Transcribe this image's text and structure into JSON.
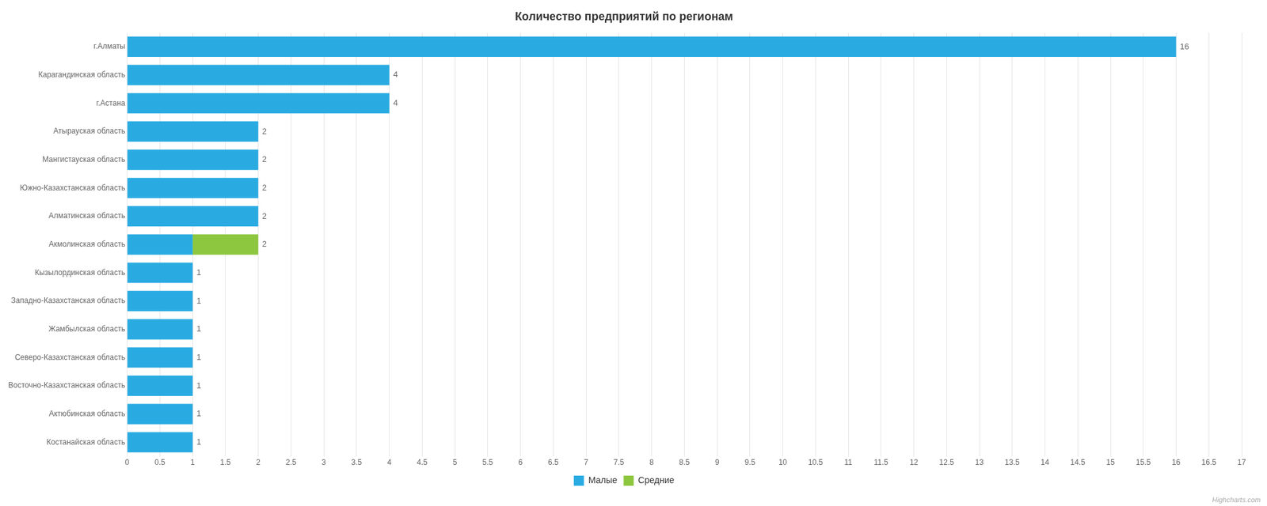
{
  "chart_data": {
    "type": "bar",
    "orientation": "horizontal",
    "stacked": true,
    "title": "Количество предприятий по регионам",
    "categories": [
      "г.Алматы",
      "Карагандинская область",
      "г.Астана",
      "Атырауская область",
      "Мангистауская область",
      "Южно-Казахстанская область",
      "Алматинская область",
      "Акмолинская область",
      "Кызылординская область",
      "Западно-Казахстанская область",
      "Жамбылская область",
      "Северо-Казахстанская область",
      "Восточно-Казахстанская область",
      "Актюбинская область",
      "Костанайская область"
    ],
    "series": [
      {
        "name": "Малые",
        "color": "#29ABE2",
        "values": [
          16,
          4,
          4,
          2,
          2,
          2,
          2,
          1,
          1,
          1,
          1,
          1,
          1,
          1,
          1
        ]
      },
      {
        "name": "Средние",
        "color": "#8DC63F",
        "values": [
          0,
          0,
          0,
          0,
          0,
          0,
          0,
          1,
          0,
          0,
          0,
          0,
          0,
          0,
          0
        ]
      }
    ],
    "value_labels": [
      16,
      4,
      4,
      2,
      2,
      2,
      2,
      2,
      1,
      1,
      1,
      1,
      1,
      1,
      1
    ],
    "xlim": [
      0,
      17
    ],
    "xticks": [
      0,
      0.5,
      1,
      1.5,
      2,
      2.5,
      3,
      3.5,
      4,
      4.5,
      5,
      5.5,
      6,
      6.5,
      7,
      7.5,
      8,
      8.5,
      9,
      9.5,
      10,
      10.5,
      11,
      11.5,
      12,
      12.5,
      13,
      13.5,
      14,
      14.5,
      15,
      15.5,
      16,
      16.5,
      17
    ],
    "grid": "x",
    "legend": "bottom",
    "annotations": [
      "Highcharts.com"
    ]
  }
}
